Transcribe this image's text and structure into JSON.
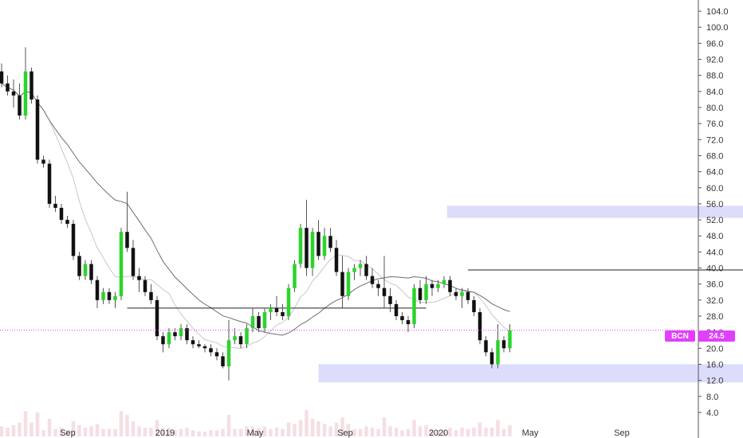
{
  "chart_data": {
    "type": "candlestick",
    "symbol": "BCN",
    "last_price": "24.5",
    "colors": {
      "up": "#2bd42b",
      "down": "#111111",
      "ma_fast": "#c8c8c8",
      "ma_slow": "#6e6e6e",
      "zone": "#dcdcfb",
      "level": "#222222",
      "price_line": "#e040fb",
      "tag": "#e040fb",
      "volume": "#f1d2d6"
    },
    "ylim": [
      2.0,
      106.0
    ],
    "y_ticks": [
      "4.0",
      "8.0",
      "12.0",
      "16.0",
      "20.0",
      "24.0",
      "28.0",
      "32.0",
      "36.0",
      "40.0",
      "44.0",
      "48.0",
      "52.0",
      "56.0",
      "60.0",
      "64.0",
      "68.0",
      "72.0",
      "76.0",
      "80.0",
      "84.0",
      "88.0",
      "92.0",
      "96.0",
      "100.0",
      "104.0"
    ],
    "x_ticks": [
      "Sep",
      "2019",
      "May",
      "Sep",
      "2020",
      "May",
      "Sep"
    ],
    "candles": [
      [
        89,
        91,
        85,
        86
      ],
      [
        86,
        88,
        83,
        84
      ],
      [
        84,
        87,
        80,
        83
      ],
      [
        83,
        86,
        77,
        78
      ],
      [
        78,
        95,
        77,
        89
      ],
      [
        89,
        90,
        81,
        82
      ],
      [
        82,
        83,
        66,
        67
      ],
      [
        67,
        68,
        65,
        66
      ],
      [
        66,
        67,
        55,
        56
      ],
      [
        56,
        58,
        54,
        55
      ],
      [
        55,
        56,
        51,
        52
      ],
      [
        52,
        53,
        50,
        51
      ],
      [
        51,
        52,
        42,
        43
      ],
      [
        43,
        44,
        37,
        38
      ],
      [
        38,
        42,
        37,
        41
      ],
      [
        41,
        42,
        36,
        37
      ],
      [
        37,
        38,
        30,
        32
      ],
      [
        32,
        35,
        31,
        34
      ],
      [
        34,
        35,
        31,
        32
      ],
      [
        32,
        34,
        30,
        33
      ],
      [
        33,
        50,
        32,
        49
      ],
      [
        49,
        59,
        44,
        45
      ],
      [
        45,
        47,
        37,
        38
      ],
      [
        38,
        40,
        34,
        37
      ],
      [
        37,
        38,
        33,
        34
      ],
      [
        34,
        36,
        31,
        32
      ],
      [
        32,
        33,
        22,
        23
      ],
      [
        23,
        24,
        19,
        21
      ],
      [
        21,
        25,
        20,
        24
      ],
      [
        24,
        25,
        22,
        23
      ],
      [
        23,
        26,
        22,
        25
      ],
      [
        25,
        26,
        21,
        22
      ],
      [
        22,
        23,
        20,
        21
      ],
      [
        21,
        22,
        20,
        20.5
      ],
      [
        20.5,
        21,
        19,
        20
      ],
      [
        20,
        21,
        18,
        19
      ],
      [
        19,
        20,
        17,
        18
      ],
      [
        18,
        19,
        15,
        15.5
      ],
      [
        15.5,
        27,
        12,
        22
      ],
      [
        22,
        25,
        21,
        23
      ],
      [
        23,
        24,
        20,
        21
      ],
      [
        21,
        26,
        20,
        25
      ],
      [
        25,
        30,
        24,
        28
      ],
      [
        28,
        29,
        24,
        25
      ],
      [
        25,
        30,
        24,
        29
      ],
      [
        29,
        31,
        27,
        30
      ],
      [
        30,
        33,
        28,
        29
      ],
      [
        29,
        31,
        27,
        28
      ],
      [
        28,
        36,
        27,
        35
      ],
      [
        35,
        42,
        34,
        41
      ],
      [
        41,
        51,
        40,
        50
      ],
      [
        50,
        57,
        38,
        40
      ],
      [
        40,
        50,
        38,
        49
      ],
      [
        49,
        52,
        42,
        43
      ],
      [
        43,
        50,
        42,
        48
      ],
      [
        48,
        50,
        44,
        45
      ],
      [
        45,
        47,
        38,
        39
      ],
      [
        39,
        43,
        30,
        33
      ],
      [
        33,
        40,
        32,
        39
      ],
      [
        39,
        41,
        37,
        40
      ],
      [
        40,
        42,
        38,
        41
      ],
      [
        41,
        43,
        37,
        38
      ],
      [
        38,
        40,
        35,
        36
      ],
      [
        36,
        37,
        33,
        35
      ],
      [
        35,
        43,
        30,
        33
      ],
      [
        33,
        35,
        29,
        31
      ],
      [
        31,
        32,
        27,
        28
      ],
      [
        28,
        29,
        26,
        27
      ],
      [
        27,
        28,
        24,
        26
      ],
      [
        26,
        36,
        25,
        35
      ],
      [
        35,
        37,
        31,
        32
      ],
      [
        32,
        38,
        31,
        36
      ],
      [
        36,
        37,
        33,
        35
      ],
      [
        35,
        37,
        34,
        36
      ],
      [
        36,
        38,
        35,
        37
      ],
      [
        37,
        38,
        33,
        34
      ],
      [
        34,
        35,
        32,
        33
      ],
      [
        33,
        35,
        30,
        34
      ],
      [
        34,
        35,
        31,
        32
      ],
      [
        32,
        33,
        28,
        29
      ],
      [
        29,
        30,
        21,
        22
      ],
      [
        22,
        23,
        18,
        19
      ],
      [
        19,
        20,
        15,
        16
      ],
      [
        16,
        26,
        15,
        22
      ],
      [
        22,
        23,
        19,
        20
      ],
      [
        20,
        26,
        19,
        24.5
      ]
    ],
    "zones": [
      {
        "x1": 74.5,
        "x2": 149,
        "y_top": 55.5,
        "y_bottom": 52.5
      },
      {
        "x1": 53,
        "x2": 143,
        "y_top": 16.0,
        "y_bottom": 11.5
      }
    ],
    "levels": [
      {
        "x1": 21,
        "x2": 71,
        "y": 30.0
      },
      {
        "x1": 78,
        "x2": 139,
        "y": 39.5
      }
    ]
  }
}
